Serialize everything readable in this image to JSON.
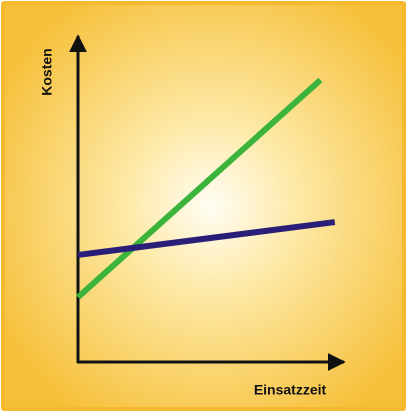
{
  "chart_data": {
    "type": "line",
    "x_label": "Einsatzzeit",
    "y_label": "Kosten",
    "xlim": [
      0,
      11
    ],
    "ylim": [
      0,
      13.5
    ],
    "series": [
      {
        "color": "#3cb43c",
        "x": [
          0,
          10.1
        ],
        "values": [
          2.7,
          11.75
        ]
      },
      {
        "color": "#2a1f78",
        "x": [
          0,
          10.7
        ],
        "values": [
          4.46,
          5.83
        ]
      }
    ]
  }
}
